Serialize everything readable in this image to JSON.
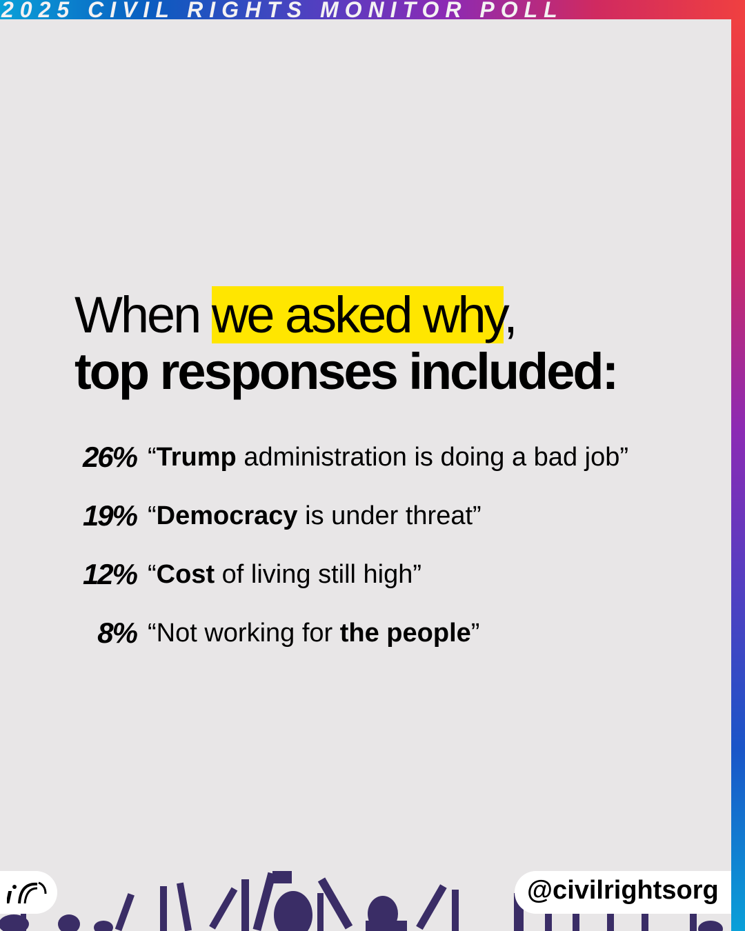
{
  "banner": {
    "text": "2025 CIVIL RIGHTS MONITOR POLL"
  },
  "headline": {
    "line1_pre": "When ",
    "line1_highlight": "we asked why",
    "line1_post": ",",
    "line2": "top responses included:"
  },
  "responses": [
    {
      "percent": "26%",
      "quote_open": "“",
      "bold": "Trump",
      "rest": " administration is doing a bad job”"
    },
    {
      "percent": "19%",
      "quote_open": "“",
      "bold": "Democracy",
      "rest": " is under threat”"
    },
    {
      "percent": "12%",
      "quote_open": "“",
      "bold": "Cost",
      "rest": " of living still high”"
    },
    {
      "percent": "8%",
      "quote_open": "“Not working for ",
      "bold": "the people",
      "rest": "”"
    }
  ],
  "footer": {
    "handle": "@civilrightsorg",
    "logo": "civil-rights-logo"
  },
  "colors": {
    "background": "#e8e6e7",
    "highlight": "#ffe600",
    "crowd": "#3a2d66"
  }
}
